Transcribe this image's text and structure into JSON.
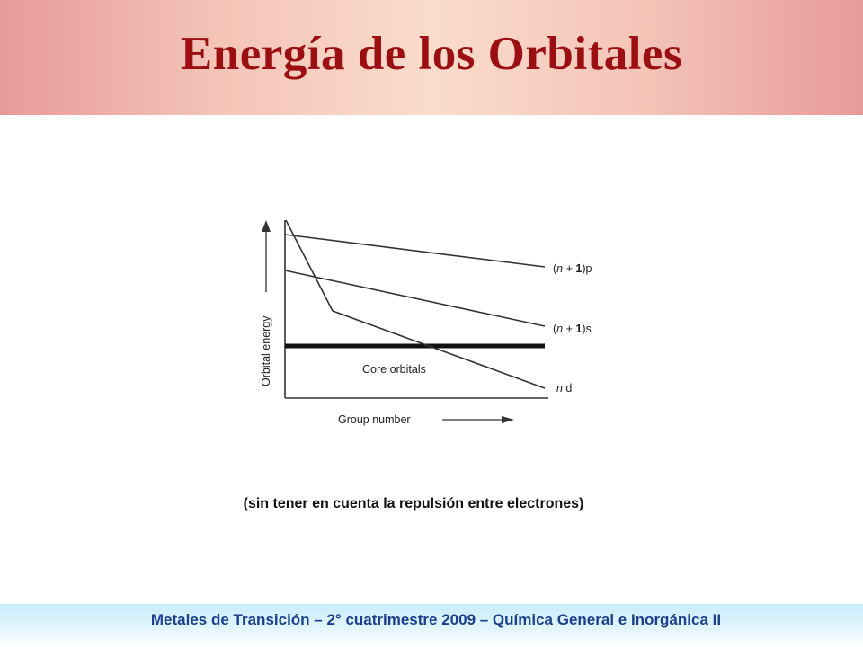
{
  "title": "Energía de los Orbitales",
  "diagram": {
    "y_axis_label": "Orbital energy",
    "x_axis_label": "Group number",
    "region_label": "Core orbitals",
    "lines": [
      {
        "key": "np1p",
        "label_n": "n",
        "label_mid": " + ",
        "label_one": "1",
        "label_tail": "p"
      },
      {
        "key": "np1s",
        "label_n": "n",
        "label_mid": " + ",
        "label_one": "1",
        "label_tail": "s"
      },
      {
        "key": "nd",
        "label_n": "n",
        "label_tail": " d"
      }
    ]
  },
  "caption": "(sin tener en cuenta la repulsión entre electrones)",
  "footer": "Metales de Transición – 2° cuatrimestre 2009 – Química General e Inorgánica II"
}
